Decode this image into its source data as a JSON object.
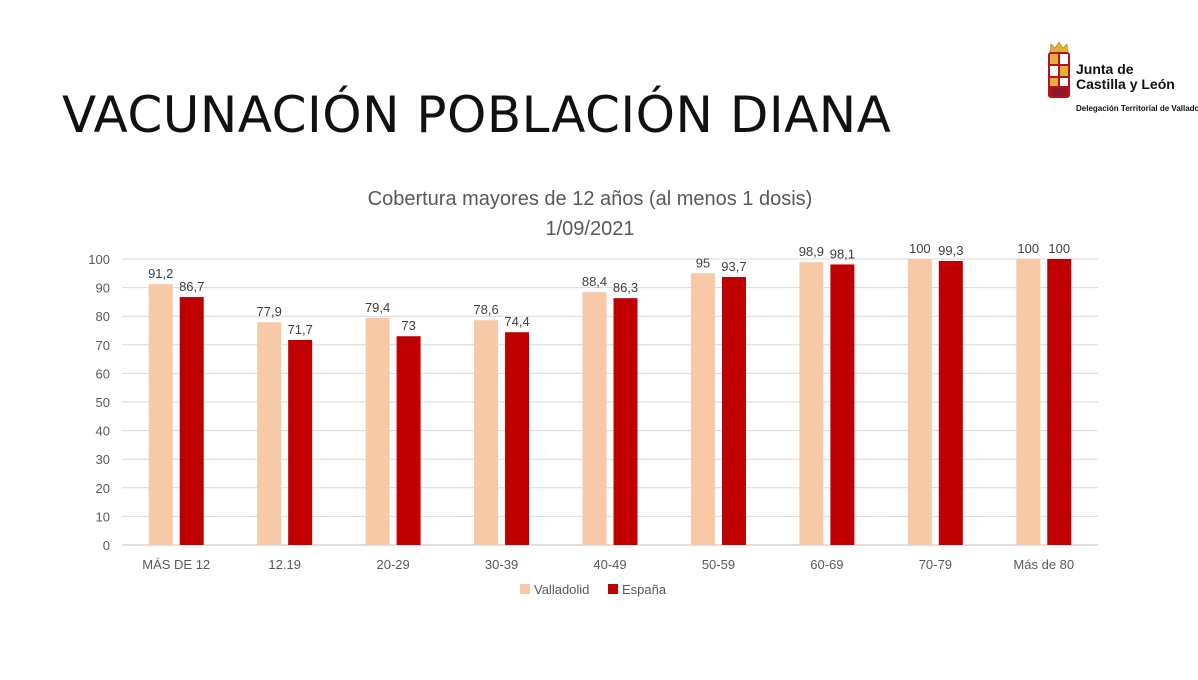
{
  "slide": {
    "title": "VACUNACIÓN POBLACIÓN DIANA"
  },
  "logo": {
    "org_line1": "Junta de",
    "org_line2": "Castilla y León",
    "org_sub": "Delegación Territorial de Valladolid",
    "colors": {
      "shield_red": "#b5121b",
      "shield_gold": "#e2b13c",
      "castle": "#8a1a2a"
    }
  },
  "chart_data": {
    "type": "bar",
    "title": "Cobertura mayores de 12 años (al menos 1 dosis)",
    "subtitle": "1/09/2021",
    "categories": [
      "MÁS DE 12",
      "12.19",
      "20-29",
      "30-39",
      "40-49",
      "50-59",
      "60-69",
      "70-79",
      "Más de 80"
    ],
    "series": [
      {
        "name": "Valladolid",
        "color": "#f7c9a6",
        "values": [
          91.2,
          77.9,
          79.4,
          78.6,
          88.4,
          95,
          98.9,
          100,
          100
        ],
        "labels": [
          "91,2",
          "77,9",
          "79,4",
          "78,6",
          "88,4",
          "95",
          "98,9",
          "100",
          "100"
        ]
      },
      {
        "name": "España",
        "color": "#c00000",
        "values": [
          86.7,
          71.7,
          73,
          74.4,
          86.3,
          93.7,
          98.1,
          99.3,
          100
        ],
        "labels": [
          "86,7",
          "71,7",
          "73",
          "74,4",
          "86,3",
          "93,7",
          "98,1",
          "99,3",
          "100"
        ]
      }
    ],
    "ylim": [
      0,
      100
    ],
    "yticks": [
      0,
      10,
      20,
      30,
      40,
      50,
      60,
      70,
      80,
      90,
      100
    ],
    "grid": true,
    "legend": "bottom-center",
    "xlabel": "",
    "ylabel": ""
  }
}
